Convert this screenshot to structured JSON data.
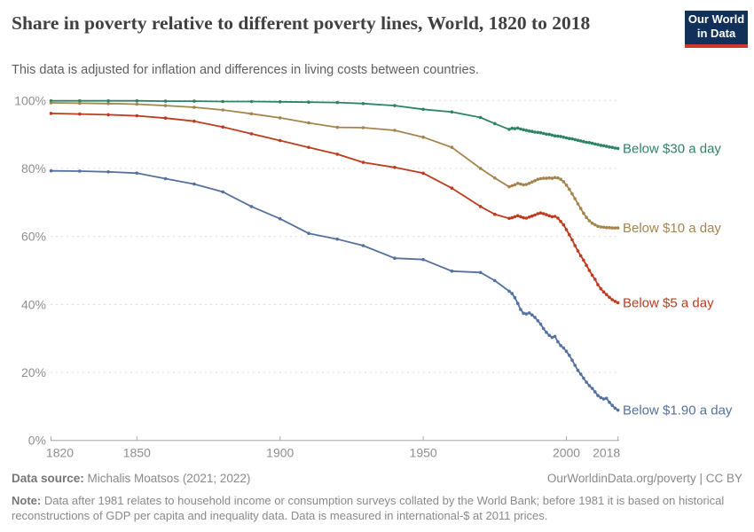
{
  "header": {
    "title": "Share in poverty relative to different poverty lines, World, 1820 to 2018",
    "subtitle": "This data is adjusted for inflation and differences in living costs between countries.",
    "logo": {
      "line1": "Our World",
      "line2": "in Data",
      "bg_color": "#12315A",
      "stripe_color": "#CE392E"
    }
  },
  "chart_data": {
    "type": "line",
    "title": "Share in poverty relative to different poverty lines, World, 1820 to 2018",
    "xlabel": "",
    "ylabel": "",
    "xlim": [
      1820,
      2018
    ],
    "ylim": [
      0,
      100
    ],
    "grid": "horizontal dashed",
    "legend_position": "end-of-line labels",
    "x_ticks": [
      1820,
      1850,
      1900,
      1950,
      2000,
      2018
    ],
    "x_tick_labels": [
      "1820",
      "1850",
      "1900",
      "1950",
      "2000",
      "2018"
    ],
    "y_ticks": [
      0,
      20,
      40,
      60,
      80,
      100
    ],
    "y_tick_labels": [
      "0%",
      "20%",
      "40%",
      "60%",
      "80%",
      "100%"
    ],
    "years": [
      1820,
      1830,
      1840,
      1850,
      1860,
      1870,
      1880,
      1890,
      1900,
      1910,
      1920,
      1929,
      1940,
      1950,
      1960,
      1970,
      1975,
      1980,
      1981,
      1982,
      1983,
      1984,
      1985,
      1986,
      1987,
      1988,
      1989,
      1990,
      1991,
      1992,
      1993,
      1994,
      1995,
      1996,
      1997,
      1998,
      1999,
      2000,
      2001,
      2002,
      2003,
      2004,
      2005,
      2006,
      2007,
      2008,
      2009,
      2010,
      2011,
      2012,
      2013,
      2014,
      2015,
      2016,
      2017,
      2018
    ],
    "series": [
      {
        "name": "Below $30 a day",
        "color": "#2C8465",
        "values": [
          99.9,
          99.9,
          99.9,
          99.9,
          99.8,
          99.8,
          99.7,
          99.7,
          99.6,
          99.5,
          99.4,
          99.1,
          98.5,
          97.4,
          96.6,
          95.0,
          93.2,
          91.5,
          91.8,
          91.7,
          91.9,
          91.6,
          91.4,
          91.2,
          91.0,
          90.9,
          90.7,
          90.6,
          90.5,
          90.3,
          90.1,
          90.0,
          89.8,
          89.6,
          89.5,
          89.4,
          89.2,
          89.0,
          88.8,
          88.7,
          88.5,
          88.3,
          88.1,
          87.9,
          87.7,
          87.6,
          87.4,
          87.2,
          87.0,
          86.8,
          86.7,
          86.5,
          86.3,
          86.2,
          86.0,
          85.9
        ]
      },
      {
        "name": "Below $10 a day",
        "color": "#A5854E",
        "values": [
          99.3,
          99.2,
          99.1,
          98.9,
          98.5,
          98.0,
          97.2,
          96.1,
          94.9,
          93.4,
          92.1,
          92.0,
          91.2,
          89.2,
          86.2,
          80.0,
          77.2,
          74.6,
          74.9,
          75.2,
          75.6,
          75.4,
          75.2,
          75.3,
          75.6,
          76.0,
          76.4,
          76.8,
          77.0,
          77.1,
          77.1,
          77.2,
          77.1,
          77.3,
          77.2,
          76.8,
          76.1,
          75.1,
          73.9,
          72.5,
          71.1,
          69.6,
          68.2,
          66.8,
          65.6,
          64.6,
          63.9,
          63.4,
          63.0,
          62.8,
          62.7,
          62.6,
          62.6,
          62.5,
          62.5,
          62.5
        ]
      },
      {
        "name": "Below $5 a day",
        "color": "#BE3B1F",
        "values": [
          96.2,
          96.0,
          95.8,
          95.5,
          94.8,
          93.9,
          92.2,
          90.2,
          88.2,
          86.2,
          84.2,
          81.8,
          80.3,
          78.6,
          74.2,
          68.8,
          66.5,
          65.3,
          65.5,
          65.8,
          66.1,
          65.8,
          65.5,
          65.4,
          65.7,
          66.0,
          66.3,
          66.7,
          66.9,
          66.7,
          66.4,
          66.1,
          65.8,
          65.9,
          65.4,
          64.4,
          63.4,
          62.0,
          60.5,
          59.0,
          57.3,
          55.7,
          54.3,
          53.0,
          51.5,
          50.0,
          48.6,
          47.4,
          45.8,
          44.6,
          43.7,
          42.9,
          42.1,
          41.4,
          40.9,
          40.5
        ]
      },
      {
        "name": "Below $1.90 a day",
        "color": "#54719F",
        "values": [
          79.3,
          79.2,
          79.0,
          78.6,
          77.0,
          75.4,
          73.1,
          68.8,
          65.2,
          60.9,
          59.2,
          57.3,
          53.6,
          53.2,
          49.8,
          49.4,
          47.0,
          43.9,
          43.2,
          42.0,
          40.3,
          38.5,
          37.4,
          37.2,
          37.5,
          36.9,
          36.2,
          35.2,
          34.2,
          32.9,
          31.8,
          30.9,
          30.3,
          30.6,
          29.0,
          27.9,
          27.2,
          26.2,
          25.0,
          23.6,
          22.1,
          20.6,
          19.5,
          18.3,
          17.1,
          16.1,
          15.3,
          14.3,
          13.2,
          12.6,
          12.2,
          12.4,
          11.2,
          10.3,
          9.5,
          8.9
        ]
      }
    ],
    "style": {
      "grid_color": "#dcdcdc",
      "axis_color": "#a8a8a8",
      "tick_label_color": "#8f8f8f"
    }
  },
  "footer": {
    "source_label": "Data source:",
    "source_text": " Michalis Moatsos (2021; 2022)",
    "link_text": "OurWorldinData.org/poverty | CC BY",
    "note_label": "Note:",
    "note_text": " Data after 1981 relates to household income or consumption surveys collated by the World Bank; before 1981 it is based on historical reconstructions of GDP per capita and inequality data. Data is measured in international-$ at 2011 prices."
  }
}
